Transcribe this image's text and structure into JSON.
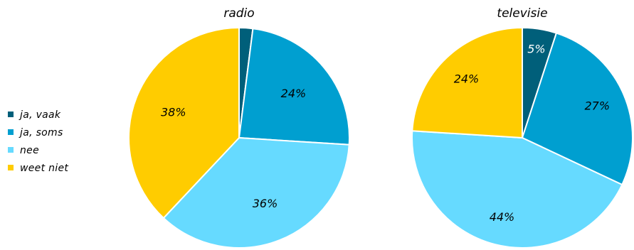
{
  "chart_data": [
    {
      "type": "pie",
      "title": "radio",
      "categories": [
        "ja, vaak",
        "ja, soms",
        "nee",
        "weet niet"
      ],
      "values": [
        2,
        24,
        36,
        38
      ],
      "labels": [
        "",
        "24%",
        "36%",
        "38%"
      ],
      "colors": [
        "#005f7a",
        "#009fd0",
        "#66daff",
        "#ffcc00"
      ],
      "label_colors": [
        "#000000",
        "#000000",
        "#000000",
        "#000000"
      ]
    },
    {
      "type": "pie",
      "title": "televisie",
      "categories": [
        "ja, vaak",
        "ja, soms",
        "nee",
        "weet niet"
      ],
      "values": [
        5,
        27,
        44,
        24
      ],
      "labels": [
        "5%",
        "27%",
        "44%",
        "24%"
      ],
      "colors": [
        "#005f7a",
        "#009fd0",
        "#66daff",
        "#ffcc00"
      ],
      "label_colors": [
        "#ffffff",
        "#000000",
        "#000000",
        "#000000"
      ]
    }
  ],
  "legend": {
    "position": "left",
    "items": [
      {
        "label": "ja, vaak",
        "color": "#005f7a"
      },
      {
        "label": "ja, soms",
        "color": "#009fd0"
      },
      {
        "label": "nee",
        "color": "#66daff"
      },
      {
        "label": "weet niet",
        "color": "#ffcc00"
      }
    ]
  }
}
